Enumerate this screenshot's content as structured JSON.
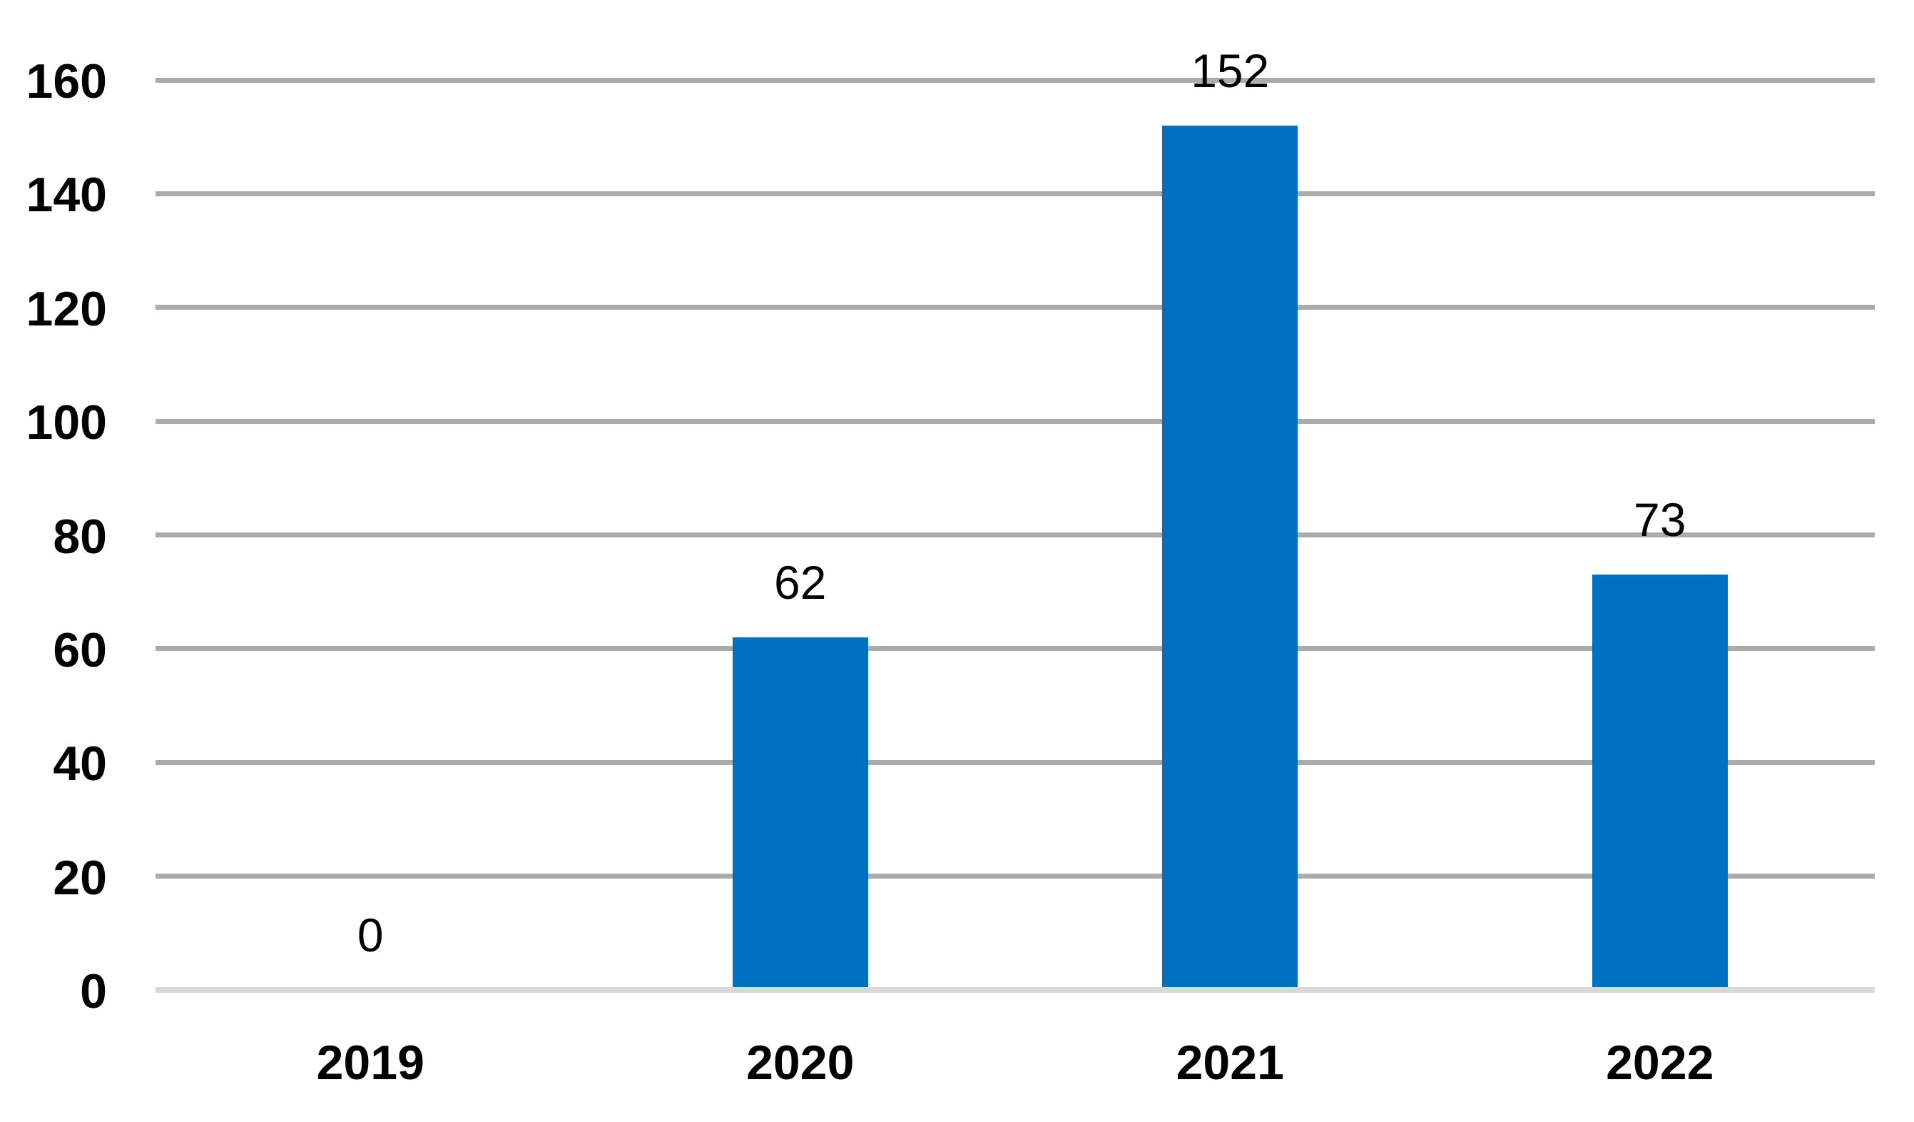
{
  "chart_data": {
    "type": "bar",
    "categories": [
      "2019",
      "2020",
      "2021",
      "2022"
    ],
    "values": [
      0,
      62,
      152,
      73
    ],
    "data_labels": [
      "0",
      "62",
      "152",
      "73"
    ],
    "title": "",
    "xlabel": "",
    "ylabel": "",
    "ylim": [
      0,
      160
    ],
    "ytick_step": 20,
    "yticks": [
      0,
      20,
      40,
      60,
      80,
      100,
      120,
      140,
      160
    ],
    "grid": true,
    "legend": false,
    "colors": {
      "bar": "#0070C0",
      "gridline": "#ABABAB",
      "axis_line": "#D9D9D9",
      "text": "#000000"
    }
  }
}
